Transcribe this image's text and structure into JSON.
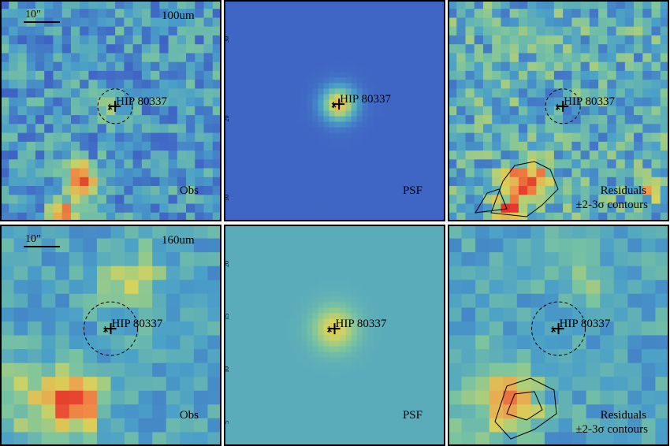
{
  "panels": [
    {
      "band": "100um",
      "scale": "10\"",
      "target": "HIP 80337",
      "label": "Obs"
    },
    {
      "target": "HIP 80337",
      "label": "PSF",
      "ticks": [
        "30",
        "20",
        "10"
      ]
    },
    {
      "target": "HIP 80337",
      "label": "Residuals",
      "sublabel": "±2-3σ contours"
    },
    {
      "band": "160um",
      "scale": "10\"",
      "target": "HIP 80337",
      "label": "Obs"
    },
    {
      "target": "HIP 80337",
      "label": "PSF",
      "ticks": [
        "20",
        "15",
        "10",
        "5"
      ]
    },
    {
      "target": "HIP 80337",
      "label": "Residuals",
      "sublabel": "±2-3σ contours"
    }
  ]
}
